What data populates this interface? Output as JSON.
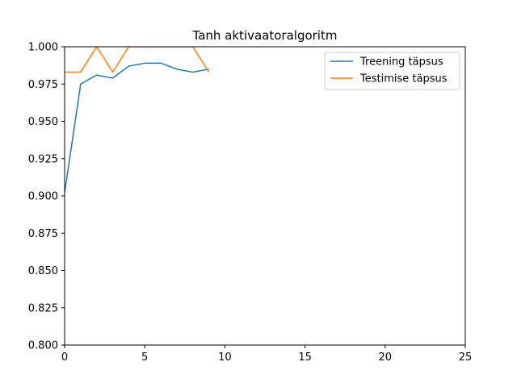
{
  "chart_data": {
    "type": "line",
    "title": "Tanh aktivaatoralgoritm",
    "xlabel": "",
    "ylabel": "",
    "xlim": [
      0,
      25
    ],
    "ylim": [
      0.8,
      1.0
    ],
    "xticks": [
      "0",
      "5",
      "10",
      "15",
      "20",
      "25"
    ],
    "yticks": [
      "0.800",
      "0.825",
      "0.850",
      "0.875",
      "0.900",
      "0.925",
      "0.950",
      "0.975",
      "1.000"
    ],
    "grid": false,
    "legend_position": "top-right",
    "series": [
      {
        "name": "Treening täpsus",
        "color": "#1f77b4",
        "x": [
          0,
          1,
          2,
          3,
          4,
          5,
          6,
          7,
          8,
          9
        ],
        "values": [
          0.902,
          0.975,
          0.981,
          0.979,
          0.987,
          0.989,
          0.989,
          0.985,
          0.983,
          0.985
        ]
      },
      {
        "name": "Testimise täpsus",
        "color": "#ff7f0e",
        "x": [
          0,
          1,
          2,
          3,
          4,
          5,
          6,
          7,
          8,
          9
        ],
        "values": [
          0.983,
          0.983,
          1.0,
          0.983,
          1.0,
          1.0,
          1.0,
          1.0,
          1.0,
          0.983
        ]
      }
    ]
  }
}
